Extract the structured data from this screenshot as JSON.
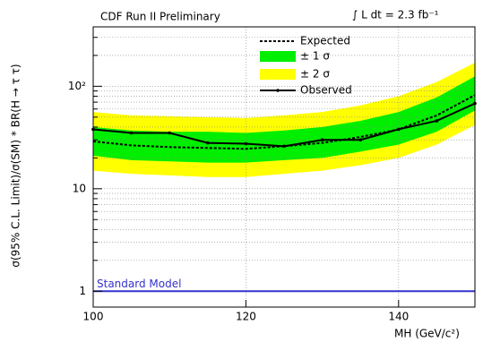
{
  "chart_data": {
    "type": "line",
    "title": "CDF Run II Preliminary",
    "annotation": "∫ L dt = 2.3 fb⁻¹",
    "xlabel": "MH (GeV/c²)",
    "ylabel": "σ(95% C.L. Limit)/σ(SM) * BR(H → τ τ)",
    "x": [
      100,
      105,
      110,
      115,
      120,
      125,
      130,
      135,
      140,
      145,
      150
    ],
    "xlim": [
      100,
      150
    ],
    "xticks": [
      100,
      120,
      140
    ],
    "ylim": [
      0.7,
      380
    ],
    "yticks": [
      1,
      10,
      {
        "value": 100,
        "label": "10²"
      }
    ],
    "yminorticks": [
      2,
      3,
      4,
      5,
      6,
      7,
      8,
      9,
      20,
      30,
      40,
      50,
      60,
      70,
      80,
      90,
      200,
      300
    ],
    "log_y": true,
    "grid": true,
    "series": [
      {
        "name": "Expected",
        "color": "#000000",
        "dashed": true,
        "values": [
          29,
          26.5,
          25.5,
          25,
          24.5,
          26,
          28,
          32,
          38,
          52,
          82
        ]
      },
      {
        "name": "Observed",
        "color": "#000000",
        "dashed": false,
        "values": [
          38,
          35,
          35,
          28,
          27.5,
          26,
          30,
          30,
          38,
          46,
          68
        ]
      }
    ],
    "bands": [
      {
        "name": "± 1 σ",
        "color": "#00ee00",
        "lower": [
          21,
          19,
          18.5,
          18,
          18,
          19,
          20,
          23,
          27,
          36,
          58
        ],
        "upper": [
          40,
          37,
          36,
          36,
          35,
          37,
          40,
          46,
          56,
          78,
          125
        ]
      },
      {
        "name": "± 2 σ",
        "color": "#ffff00",
        "lower": [
          15,
          14,
          13.5,
          13,
          13,
          14,
          15,
          17,
          20,
          27,
          42
        ],
        "upper": [
          56,
          52,
          51,
          50,
          49,
          52,
          56,
          65,
          80,
          110,
          170
        ]
      }
    ],
    "reference": {
      "label": "Standard Model",
      "value": 1,
      "color": "#3333cc"
    }
  }
}
